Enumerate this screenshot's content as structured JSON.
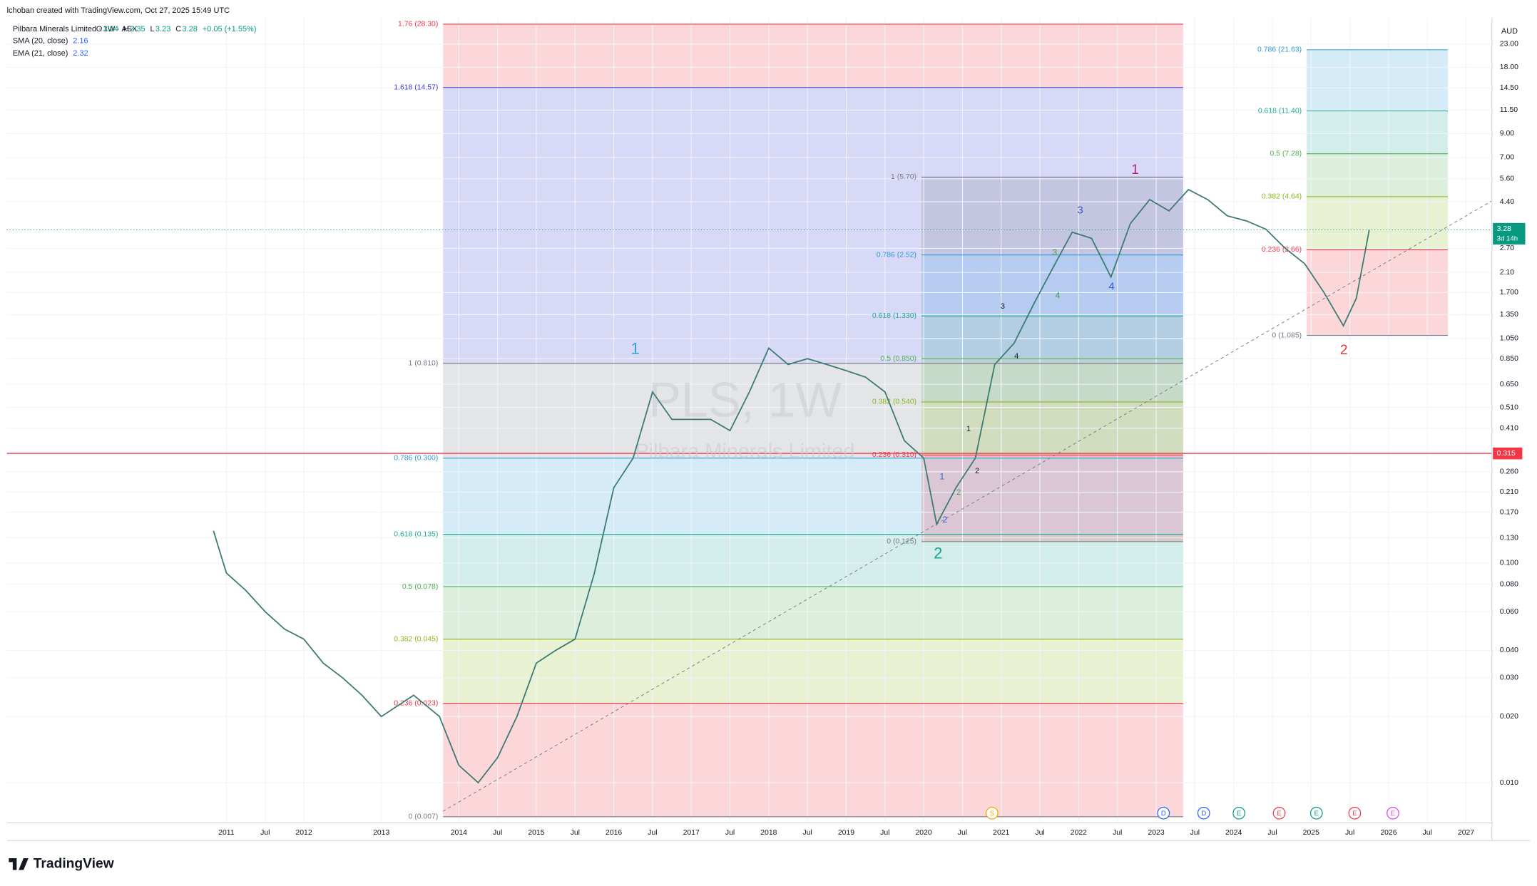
{
  "chart_data": {
    "type": "line",
    "credit": "lchoban created with TradingView.com, Oct 27, 2025 15:49 UTC",
    "title": "Pilbara Minerals Limited · 1W · ASX",
    "ohlc_labels": [
      "O",
      "H",
      "L",
      "C"
    ],
    "ohlc": [
      3.24,
      3.35,
      3.23,
      3.28
    ],
    "change": "+0.05 (+1.55%)",
    "indicators": [
      {
        "name": "SMA (20, close)",
        "value": 2.16,
        "color": "#2962ff"
      },
      {
        "name": "EMA (21, close)",
        "value": 2.32,
        "color": "#2962ff"
      }
    ],
    "watermark": {
      "symbol": "PLS, 1W",
      "name": "Pilbara Minerals Limited"
    },
    "currency": "AUD",
    "brand": "TradingView",
    "log_scale": true,
    "grid": true,
    "color": "#3d7a74",
    "x": [
      "2010-11",
      "2011-01",
      "2011-04",
      "2011-07",
      "2011-10",
      "2012-01",
      "2012-04",
      "2012-07",
      "2012-10",
      "2013-01",
      "2013-06",
      "2013-10",
      "2014-01",
      "2014-04",
      "2014-07",
      "2014-10",
      "2015-01",
      "2015-04",
      "2015-07",
      "2015-10",
      "2016-01",
      "2016-04",
      "2016-07",
      "2016-10",
      "2017-01",
      "2017-04",
      "2017-07",
      "2017-10",
      "2018-01",
      "2018-04",
      "2018-07",
      "2018-10",
      "2019-01",
      "2019-04",
      "2019-07",
      "2019-10",
      "2020-01",
      "2020-03",
      "2020-06",
      "2020-09",
      "2020-12",
      "2021-03",
      "2021-06",
      "2021-09",
      "2021-12",
      "2022-03",
      "2022-06",
      "2022-09",
      "2022-12",
      "2023-03",
      "2023-06",
      "2023-09",
      "2023-12",
      "2024-03",
      "2024-06",
      "2024-09",
      "2024-12",
      "2025-03",
      "2025-06",
      "2025-08",
      "2025-10"
    ],
    "values": [
      0.14,
      0.09,
      0.075,
      0.06,
      0.05,
      0.045,
      0.035,
      0.03,
      0.025,
      0.02,
      0.025,
      0.02,
      0.012,
      0.01,
      0.013,
      0.02,
      0.035,
      0.04,
      0.045,
      0.09,
      0.22,
      0.3,
      0.6,
      0.45,
      0.45,
      0.45,
      0.4,
      0.6,
      0.95,
      0.8,
      0.85,
      0.8,
      0.75,
      0.7,
      0.6,
      0.36,
      0.3,
      0.15,
      0.22,
      0.3,
      0.8,
      1.0,
      1.5,
      2.2,
      3.2,
      3.0,
      2.0,
      3.5,
      4.5,
      4.0,
      5.0,
      4.5,
      3.8,
      3.6,
      3.3,
      2.7,
      2.3,
      1.7,
      1.2,
      1.6,
      3.28
    ],
    "xlim": [
      "2008-03",
      "2027-05"
    ],
    "ylim": [
      0.00656,
      30.3
    ],
    "yticks": [
      {
        "value": 23,
        "label": "23.00"
      },
      {
        "value": 18,
        "label": "18.00"
      },
      {
        "value": 14.5,
        "label": "14.50"
      },
      {
        "value": 11.5,
        "label": "11.50"
      },
      {
        "value": 9,
        "label": "9.00"
      },
      {
        "value": 7,
        "label": "7.00"
      },
      {
        "value": 5.6,
        "label": "5.60"
      },
      {
        "value": 4.4,
        "label": "4.40"
      },
      {
        "value": 2.7,
        "label": "2.70"
      },
      {
        "value": 2.1,
        "label": "2.10"
      },
      {
        "value": 1.7,
        "label": "1.700"
      },
      {
        "value": 1.35,
        "label": "1.350"
      },
      {
        "value": 1.05,
        "label": "1.050"
      },
      {
        "value": 0.85,
        "label": "0.850"
      },
      {
        "value": 0.65,
        "label": "0.650"
      },
      {
        "value": 0.51,
        "label": "0.510"
      },
      {
        "value": 0.41,
        "label": "0.410"
      },
      {
        "value": 0.26,
        "label": "0.260"
      },
      {
        "value": 0.21,
        "label": "0.210"
      },
      {
        "value": 0.17,
        "label": "0.170"
      },
      {
        "value": 0.13,
        "label": "0.130"
      },
      {
        "value": 0.1,
        "label": "0.100"
      },
      {
        "value": 0.08,
        "label": "0.080"
      },
      {
        "value": 0.06,
        "label": "0.060"
      },
      {
        "value": 0.04,
        "label": "0.040"
      },
      {
        "value": 0.03,
        "label": "0.030"
      },
      {
        "value": 0.02,
        "label": "0.020"
      },
      {
        "value": 0.01,
        "label": "0.010"
      }
    ],
    "xticks": [
      {
        "value": "2011-01",
        "label": "2011"
      },
      {
        "value": "2011-07",
        "label": "Jul"
      },
      {
        "value": "2012-01",
        "label": "2012"
      },
      {
        "value": "2013-01",
        "label": "2013"
      },
      {
        "value": "2014-01",
        "label": "2014"
      },
      {
        "value": "2014-07",
        "label": "Jul"
      },
      {
        "value": "2015-01",
        "label": "2015"
      },
      {
        "value": "2015-07",
        "label": "Jul"
      },
      {
        "value": "2016-01",
        "label": "2016"
      },
      {
        "value": "2016-07",
        "label": "Jul"
      },
      {
        "value": "2017-01",
        "label": "2017"
      },
      {
        "value": "2017-07",
        "label": "Jul"
      },
      {
        "value": "2018-01",
        "label": "2018"
      },
      {
        "value": "2018-07",
        "label": "Jul"
      },
      {
        "value": "2019-01",
        "label": "2019"
      },
      {
        "value": "2019-07",
        "label": "Jul"
      },
      {
        "value": "2020-01",
        "label": "2020"
      },
      {
        "value": "2020-07",
        "label": "Jul"
      },
      {
        "value": "2021-01",
        "label": "2021"
      },
      {
        "value": "2021-07",
        "label": "Jul"
      },
      {
        "value": "2022-01",
        "label": "2022"
      },
      {
        "value": "2022-07",
        "label": "Jul"
      },
      {
        "value": "2023-01",
        "label": "2023"
      },
      {
        "value": "2023-07",
        "label": "Jul"
      },
      {
        "value": "2024-01",
        "label": "2024"
      },
      {
        "value": "2024-07",
        "label": "Jul"
      },
      {
        "value": "2025-01",
        "label": "2025"
      },
      {
        "value": "2025-07",
        "label": "Jul"
      },
      {
        "value": "2026-01",
        "label": "2026"
      },
      {
        "value": "2026-07",
        "label": "Jul"
      },
      {
        "value": "2027-01",
        "label": "2027"
      }
    ],
    "last_price": {
      "value": 3.28,
      "countdown": "3d 14h",
      "color": "#089981"
    },
    "hline": {
      "value": 0.315,
      "color": "#f23645"
    },
    "fibs": [
      {
        "levels": [
          {
            "value": 28.3,
            "label": "1.76 (28.30)",
            "color": "#f23645"
          },
          {
            "value": 14.57,
            "label": "1.618 (14.57)",
            "color": "#3a3ad6"
          },
          {
            "value": 0.81,
            "label": "1 (0.810)",
            "color": "#787b86"
          },
          {
            "value": 0.3,
            "label": "0.786 (0.300)",
            "color": "#2d9bd8"
          },
          {
            "value": 0.135,
            "label": "0.618 (0.135)",
            "color": "#22ab94"
          },
          {
            "value": 0.078,
            "label": "0.5 (0.078)",
            "color": "#4caf50"
          },
          {
            "value": 0.045,
            "label": "0.382 (0.045)",
            "color": "#8bb81f"
          },
          {
            "value": 0.023,
            "label": "0.236 (0.023)",
            "color": "#f23645"
          },
          {
            "value": 0.007,
            "label": "0 (0.007)",
            "color": "#787b86"
          }
        ]
      },
      {
        "levels": [
          {
            "value": 5.7,
            "label": "1 (5.70)",
            "color": "#787b86"
          },
          {
            "value": 2.52,
            "label": "0.786 (2.52)",
            "color": "#2d9bd8"
          },
          {
            "value": 1.33,
            "label": "0.618 (1.330)",
            "color": "#22ab94"
          },
          {
            "value": 0.85,
            "label": "0.5 (0.850)",
            "color": "#4caf50"
          },
          {
            "value": 0.54,
            "label": "0.382 (0.540)",
            "color": "#8bb81f"
          },
          {
            "value": 0.31,
            "label": "0.236 (0.310)",
            "color": "#f23645"
          },
          {
            "value": 0.125,
            "label": "0 (0.125)",
            "color": "#787b86"
          }
        ]
      },
      {
        "levels": [
          {
            "value": 21.63,
            "label": "0.786 (21.63)",
            "color": "#2d9bd8"
          },
          {
            "value": 11.4,
            "label": "0.618 (11.40)",
            "color": "#22ab94"
          },
          {
            "value": 7.28,
            "label": "0.5 (7.28)",
            "color": "#4caf50"
          },
          {
            "value": 4.64,
            "label": "0.382 (4.64)",
            "color": "#8bb81f"
          },
          {
            "value": 2.66,
            "label": "0.236 (2.66)",
            "color": "#f23645"
          },
          {
            "value": 1.085,
            "label": "0 (1.085)",
            "color": "#787b86"
          }
        ]
      }
    ],
    "wave_labels": [
      {
        "text": "1",
        "color": "#29a8d6"
      },
      {
        "text": "2",
        "color": "#1aa39a"
      },
      {
        "text": "1",
        "color": "#b0257a"
      },
      {
        "text": "2",
        "color": "#e53935"
      },
      {
        "text": "3",
        "color": "#3b5bdb"
      },
      {
        "text": "4",
        "color": "#3b5bdb"
      },
      {
        "text": "3",
        "color": "#43a047"
      },
      {
        "text": "4",
        "color": "#43a047"
      },
      {
        "text": "3",
        "color": "#131722"
      },
      {
        "text": "4",
        "color": "#131722"
      },
      {
        "text": "1",
        "color": "#131722"
      },
      {
        "text": "2",
        "color": "#131722"
      },
      {
        "text": "1",
        "color": "#3b5bdb"
      },
      {
        "text": "2",
        "color": "#3b5bdb"
      },
      {
        "text": "2",
        "color": "#43a047"
      }
    ],
    "events": [
      {
        "text": "S",
        "color": "#f7a600"
      },
      {
        "text": "D",
        "color": "#2962ff"
      },
      {
        "text": "D",
        "color": "#2962ff"
      },
      {
        "text": "E",
        "color": "#089981"
      },
      {
        "text": "E",
        "color": "#f23645"
      },
      {
        "text": "E",
        "color": "#089981"
      },
      {
        "text": "E",
        "color": "#f23645"
      },
      {
        "text": "E",
        "color": "#e040fb"
      }
    ]
  }
}
